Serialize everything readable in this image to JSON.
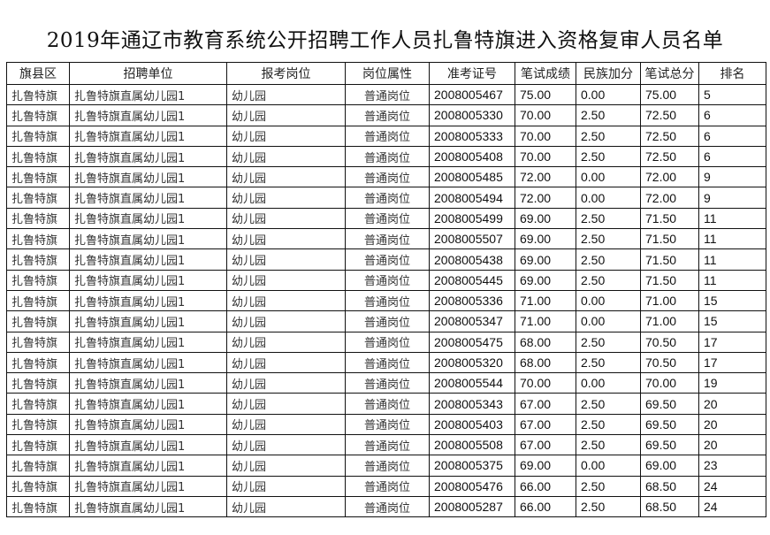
{
  "title": "2019年通辽市教育系统公开招聘工作人员扎鲁特旗进入资格复审人员名单",
  "headers": [
    "旗县区",
    "招聘单位",
    "报考岗位",
    "岗位属性",
    "准考证号",
    "笔试成绩",
    "民族加分",
    "笔试总分",
    "排名"
  ],
  "rows": [
    [
      "扎鲁特旗",
      "扎鲁特旗直属幼儿园1",
      "幼儿园",
      "普通岗位",
      "2008005467",
      "75.00",
      "0.00",
      "75.00",
      "5"
    ],
    [
      "扎鲁特旗",
      "扎鲁特旗直属幼儿园1",
      "幼儿园",
      "普通岗位",
      "2008005330",
      "70.00",
      "2.50",
      "72.50",
      "6"
    ],
    [
      "扎鲁特旗",
      "扎鲁特旗直属幼儿园1",
      "幼儿园",
      "普通岗位",
      "2008005333",
      "70.00",
      "2.50",
      "72.50",
      "6"
    ],
    [
      "扎鲁特旗",
      "扎鲁特旗直属幼儿园1",
      "幼儿园",
      "普通岗位",
      "2008005408",
      "70.00",
      "2.50",
      "72.50",
      "6"
    ],
    [
      "扎鲁特旗",
      "扎鲁特旗直属幼儿园1",
      "幼儿园",
      "普通岗位",
      "2008005485",
      "72.00",
      "0.00",
      "72.00",
      "9"
    ],
    [
      "扎鲁特旗",
      "扎鲁特旗直属幼儿园1",
      "幼儿园",
      "普通岗位",
      "2008005494",
      "72.00",
      "0.00",
      "72.00",
      "9"
    ],
    [
      "扎鲁特旗",
      "扎鲁特旗直属幼儿园1",
      "幼儿园",
      "普通岗位",
      "2008005499",
      "69.00",
      "2.50",
      "71.50",
      "11"
    ],
    [
      "扎鲁特旗",
      "扎鲁特旗直属幼儿园1",
      "幼儿园",
      "普通岗位",
      "2008005507",
      "69.00",
      "2.50",
      "71.50",
      "11"
    ],
    [
      "扎鲁特旗",
      "扎鲁特旗直属幼儿园1",
      "幼儿园",
      "普通岗位",
      "2008005438",
      "69.00",
      "2.50",
      "71.50",
      "11"
    ],
    [
      "扎鲁特旗",
      "扎鲁特旗直属幼儿园1",
      "幼儿园",
      "普通岗位",
      "2008005445",
      "69.00",
      "2.50",
      "71.50",
      "11"
    ],
    [
      "扎鲁特旗",
      "扎鲁特旗直属幼儿园1",
      "幼儿园",
      "普通岗位",
      "2008005336",
      "71.00",
      "0.00",
      "71.00",
      "15"
    ],
    [
      "扎鲁特旗",
      "扎鲁特旗直属幼儿园1",
      "幼儿园",
      "普通岗位",
      "2008005347",
      "71.00",
      "0.00",
      "71.00",
      "15"
    ],
    [
      "扎鲁特旗",
      "扎鲁特旗直属幼儿园1",
      "幼儿园",
      "普通岗位",
      "2008005475",
      "68.00",
      "2.50",
      "70.50",
      "17"
    ],
    [
      "扎鲁特旗",
      "扎鲁特旗直属幼儿园1",
      "幼儿园",
      "普通岗位",
      "2008005320",
      "68.00",
      "2.50",
      "70.50",
      "17"
    ],
    [
      "扎鲁特旗",
      "扎鲁特旗直属幼儿园1",
      "幼儿园",
      "普通岗位",
      "2008005544",
      "70.00",
      "0.00",
      "70.00",
      "19"
    ],
    [
      "扎鲁特旗",
      "扎鲁特旗直属幼儿园1",
      "幼儿园",
      "普通岗位",
      "2008005343",
      "67.00",
      "2.50",
      "69.50",
      "20"
    ],
    [
      "扎鲁特旗",
      "扎鲁特旗直属幼儿园1",
      "幼儿园",
      "普通岗位",
      "2008005403",
      "67.00",
      "2.50",
      "69.50",
      "20"
    ],
    [
      "扎鲁特旗",
      "扎鲁特旗直属幼儿园1",
      "幼儿园",
      "普通岗位",
      "2008005508",
      "67.00",
      "2.50",
      "69.50",
      "20"
    ],
    [
      "扎鲁特旗",
      "扎鲁特旗直属幼儿园1",
      "幼儿园",
      "普通岗位",
      "2008005375",
      "69.00",
      "0.00",
      "69.00",
      "23"
    ],
    [
      "扎鲁特旗",
      "扎鲁特旗直属幼儿园1",
      "幼儿园",
      "普通岗位",
      "2008005476",
      "66.00",
      "2.50",
      "68.50",
      "24"
    ],
    [
      "扎鲁特旗",
      "扎鲁特旗直属幼儿园1",
      "幼儿园",
      "普通岗位",
      "2008005287",
      "66.00",
      "2.50",
      "68.50",
      "24"
    ]
  ]
}
